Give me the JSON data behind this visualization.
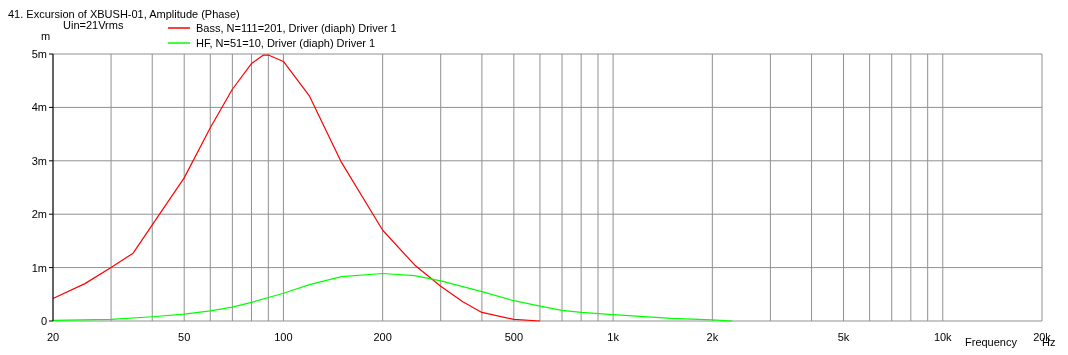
{
  "chart_data": {
    "type": "line",
    "title": "41. Excursion of XBUSH-01, Amplitude (Phase)",
    "xlabel": "Frequency",
    "ylabel": "m",
    "annotations": [
      "Uin=21Vrms",
      "Hz"
    ],
    "log": "x",
    "grid": true,
    "legend": "top left",
    "marker": "none",
    "line_style": "solid",
    "xlim": [
      20,
      20000
    ],
    "ylim": [
      0,
      5
    ],
    "xticks": [
      20,
      {
        "value": 30,
        "label": null
      },
      {
        "value": 40,
        "label": null
      },
      50,
      {
        "value": 60,
        "label": null
      },
      {
        "value": 70,
        "label": null
      },
      {
        "value": 80,
        "label": null
      },
      {
        "value": 90,
        "label": null
      },
      100,
      200,
      {
        "value": 300,
        "label": null
      },
      {
        "value": 400,
        "label": null
      },
      500,
      {
        "value": 600,
        "label": null
      },
      {
        "value": 700,
        "label": null
      },
      {
        "value": 800,
        "label": null
      },
      {
        "value": 900,
        "label": null
      },
      {
        "value": 1000,
        "label": "1k"
      },
      {
        "value": 2000,
        "label": "2k"
      },
      {
        "value": 3000,
        "label": null
      },
      {
        "value": 4000,
        "label": null
      },
      {
        "value": 5000,
        "label": "5k"
      },
      {
        "value": 6000,
        "label": null
      },
      {
        "value": 7000,
        "label": null
      },
      {
        "value": 8000,
        "label": null
      },
      {
        "value": 9000,
        "label": null
      },
      {
        "value": 10000,
        "label": "10k"
      },
      {
        "value": 20000,
        "label": "20k"
      }
    ],
    "yticks": [
      0,
      {
        "value": 1,
        "label": "1m"
      },
      {
        "value": 2,
        "label": "2m"
      },
      {
        "value": 3,
        "label": "3m"
      },
      {
        "value": 4,
        "label": "4m"
      },
      {
        "value": 5,
        "label": "5m"
      }
    ],
    "series": [
      {
        "name": "Bass, N=111=201, Driver (diaph) Driver 1",
        "color": "#ff0000",
        "x": [
          20,
          25,
          30,
          35,
          40,
          50,
          60,
          70,
          80,
          87,
          90,
          100,
          120,
          150,
          200,
          250,
          300,
          350,
          400,
          500,
          600
        ],
        "values": [
          0.42,
          0.7,
          1.0,
          1.27,
          1.8,
          2.68,
          3.62,
          4.34,
          4.82,
          4.98,
          4.98,
          4.86,
          4.21,
          2.97,
          1.7,
          1.05,
          0.65,
          0.36,
          0.16,
          0.03,
          0
        ]
      },
      {
        "name": "HF, N=51=10, Driver (diaph) Driver 1",
        "color": "#00ff00",
        "x": [
          20,
          30,
          40,
          50,
          60,
          70,
          80,
          100,
          120,
          150,
          200,
          250,
          300,
          400,
          500,
          600,
          700,
          800,
          1000,
          1500,
          2000,
          2300
        ],
        "values": [
          0.01,
          0.03,
          0.08,
          0.13,
          0.19,
          0.26,
          0.35,
          0.52,
          0.68,
          0.83,
          0.89,
          0.85,
          0.75,
          0.55,
          0.38,
          0.28,
          0.2,
          0.16,
          0.12,
          0.05,
          0.02,
          0
        ]
      }
    ]
  }
}
